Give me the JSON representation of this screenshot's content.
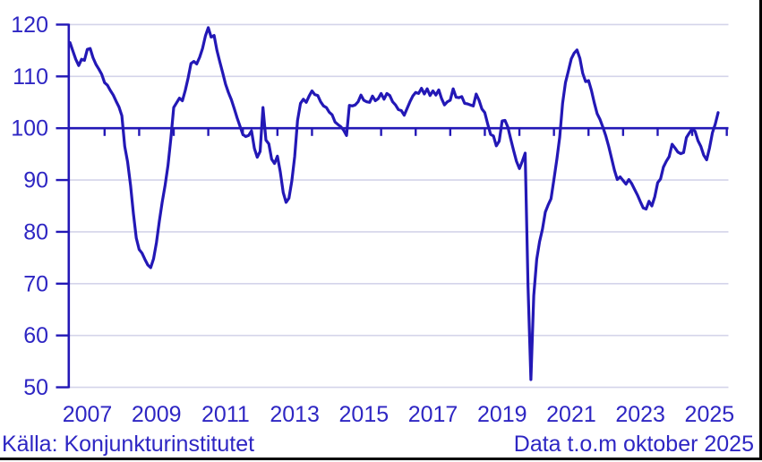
{
  "chart_data": {
    "type": "line",
    "title": "",
    "x_unit": "month",
    "x_range": [
      "2007-01",
      "2025-10"
    ],
    "x_tick_labels": [
      "2007",
      "2009",
      "2011",
      "2013",
      "2015",
      "2017",
      "2019",
      "2021",
      "2023",
      "2025"
    ],
    "y_ticks": [
      50,
      60,
      70,
      80,
      90,
      100,
      110,
      120
    ],
    "ylim": [
      50,
      120
    ],
    "reference_line": 100,
    "grid": "horizontal",
    "legend": "none",
    "series": [
      {
        "name": "index",
        "start": "2007-01",
        "values": [
          116.5,
          114.9,
          113.3,
          112.1,
          113.3,
          113.1,
          115.2,
          115.4,
          113.6,
          112.3,
          111.4,
          110.4,
          108.8,
          108.3,
          107.3,
          106.4,
          105.2,
          104.1,
          102.4,
          96.5,
          93.5,
          89.0,
          83.5,
          78.8,
          76.6,
          75.9,
          74.7,
          73.6,
          73.1,
          74.8,
          77.9,
          82.0,
          85.7,
          89.0,
          92.8,
          98.0,
          104.0,
          104.9,
          105.8,
          105.3,
          107.3,
          109.7,
          112.5,
          112.9,
          112.4,
          113.7,
          115.4,
          117.8,
          119.4,
          117.6,
          117.9,
          115.0,
          112.8,
          110.7,
          108.5,
          106.9,
          105.5,
          103.8,
          102.0,
          100.4,
          98.8,
          98.4,
          98.6,
          99.5,
          96.1,
          94.4,
          95.5,
          104.0,
          97.7,
          97.0,
          94.0,
          93.2,
          94.6,
          91.6,
          87.6,
          85.7,
          86.5,
          89.8,
          94.5,
          101.5,
          104.8,
          105.6,
          105.0,
          106.2,
          107.2,
          106.5,
          106.3,
          105.1,
          104.3,
          104.0,
          103.1,
          102.6,
          101.2,
          100.7,
          100.3,
          99.6,
          98.6,
          104.4,
          104.3,
          104.5,
          105.1,
          106.4,
          105.4,
          105.1,
          105.0,
          106.2,
          105.3,
          105.7,
          106.7,
          105.6,
          106.7,
          106.3,
          105.1,
          104.5,
          103.6,
          103.4,
          102.5,
          103.8,
          105.1,
          106.2,
          106.9,
          106.7,
          107.7,
          106.6,
          107.6,
          106.3,
          107.2,
          106.4,
          107.4,
          105.7,
          104.5,
          105.1,
          105.4,
          107.6,
          106.0,
          105.9,
          106.1,
          104.8,
          104.7,
          104.5,
          104.3,
          106.6,
          105.4,
          103.7,
          103.0,
          100.8,
          98.8,
          98.5,
          96.6,
          97.5,
          101.4,
          101.5,
          100.2,
          97.9,
          95.7,
          93.6,
          92.2,
          93.6,
          95.2,
          69.5,
          51.5,
          67.7,
          74.7,
          78.1,
          80.5,
          83.8,
          85.2,
          86.4,
          90.2,
          94.0,
          98.3,
          104.8,
          108.8,
          111.0,
          113.4,
          114.5,
          115.1,
          113.5,
          110.6,
          109.0,
          109.2,
          107.3,
          104.9,
          102.8,
          101.7,
          100.2,
          98.5,
          96.5,
          94.2,
          91.9,
          90.1,
          90.6,
          89.9,
          89.2,
          90.1,
          89.3,
          88.2,
          87.1,
          85.8,
          84.6,
          84.4,
          85.9,
          85.0,
          86.8,
          89.5,
          90.2,
          92.5,
          93.6,
          94.5,
          96.9,
          96.2,
          95.4,
          95.1,
          95.3,
          98.2,
          99.1,
          99.9,
          99.4,
          97.6,
          96.5,
          94.8,
          93.9,
          96.2,
          99.1,
          100.8,
          103.0
        ]
      }
    ]
  },
  "colors": {
    "line": "#2318b6",
    "axis": "#2318b6",
    "text": "#2e26c3",
    "grid": "#d4d4ea",
    "frame": "#000000",
    "background": "#ffffff"
  },
  "footer": {
    "source": "Källa: Konjunkturinstitutet",
    "note": "Data t.o.m oktober 2025"
  }
}
